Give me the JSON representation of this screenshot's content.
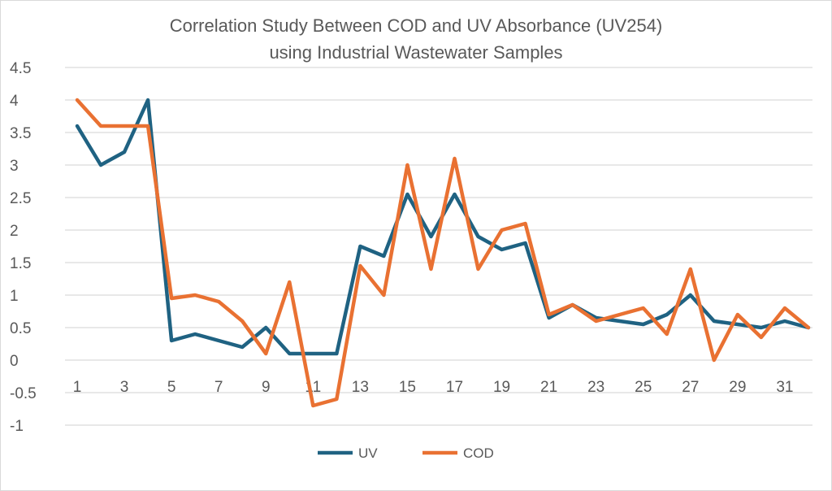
{
  "colors": {
    "uv": "#1f6282",
    "cod": "#e97132",
    "grid": "#d9d9d9",
    "text": "#595959"
  },
  "chart_data": {
    "type": "line",
    "title": "Correlation Study Between COD and UV Absorbance (UV254)",
    "subtitle": "using Industrial Wastewater Samples",
    "xlabel": "",
    "ylabel": "",
    "ylim": [
      -1,
      4.5
    ],
    "yticks": [
      "-1",
      "-0.5",
      "0",
      "0.5",
      "1",
      "1.5",
      "2",
      "2.5",
      "3",
      "3.5",
      "4",
      "4.5"
    ],
    "x": [
      1,
      2,
      3,
      4,
      5,
      6,
      7,
      8,
      9,
      10,
      11,
      12,
      13,
      14,
      15,
      16,
      17,
      18,
      19,
      20,
      21,
      22,
      23,
      24,
      25,
      26,
      27,
      28,
      29,
      30,
      31,
      32
    ],
    "xticks": [
      "1",
      "3",
      "5",
      "7",
      "9",
      "11",
      "13",
      "15",
      "17",
      "19",
      "21",
      "23",
      "25",
      "27",
      "29",
      "31"
    ],
    "grid": true,
    "legend_position": "bottom",
    "series": [
      {
        "name": "UV",
        "values": [
          3.6,
          3.0,
          3.2,
          4.0,
          0.3,
          0.4,
          0.3,
          0.2,
          0.5,
          0.1,
          0.1,
          0.1,
          1.75,
          1.6,
          2.55,
          1.9,
          2.55,
          1.9,
          1.7,
          1.8,
          0.65,
          0.85,
          0.65,
          0.6,
          0.55,
          0.7,
          1.0,
          0.6,
          0.55,
          0.5,
          0.6,
          0.5
        ]
      },
      {
        "name": "COD",
        "values": [
          4.0,
          3.6,
          3.6,
          3.6,
          0.95,
          1.0,
          0.9,
          0.6,
          0.1,
          1.2,
          -0.7,
          -0.6,
          1.45,
          1.0,
          3.0,
          1.4,
          3.1,
          1.4,
          2.0,
          2.1,
          0.7,
          0.85,
          0.6,
          0.7,
          0.8,
          0.4,
          1.4,
          0.0,
          0.7,
          0.35,
          0.8,
          0.5
        ]
      }
    ]
  }
}
